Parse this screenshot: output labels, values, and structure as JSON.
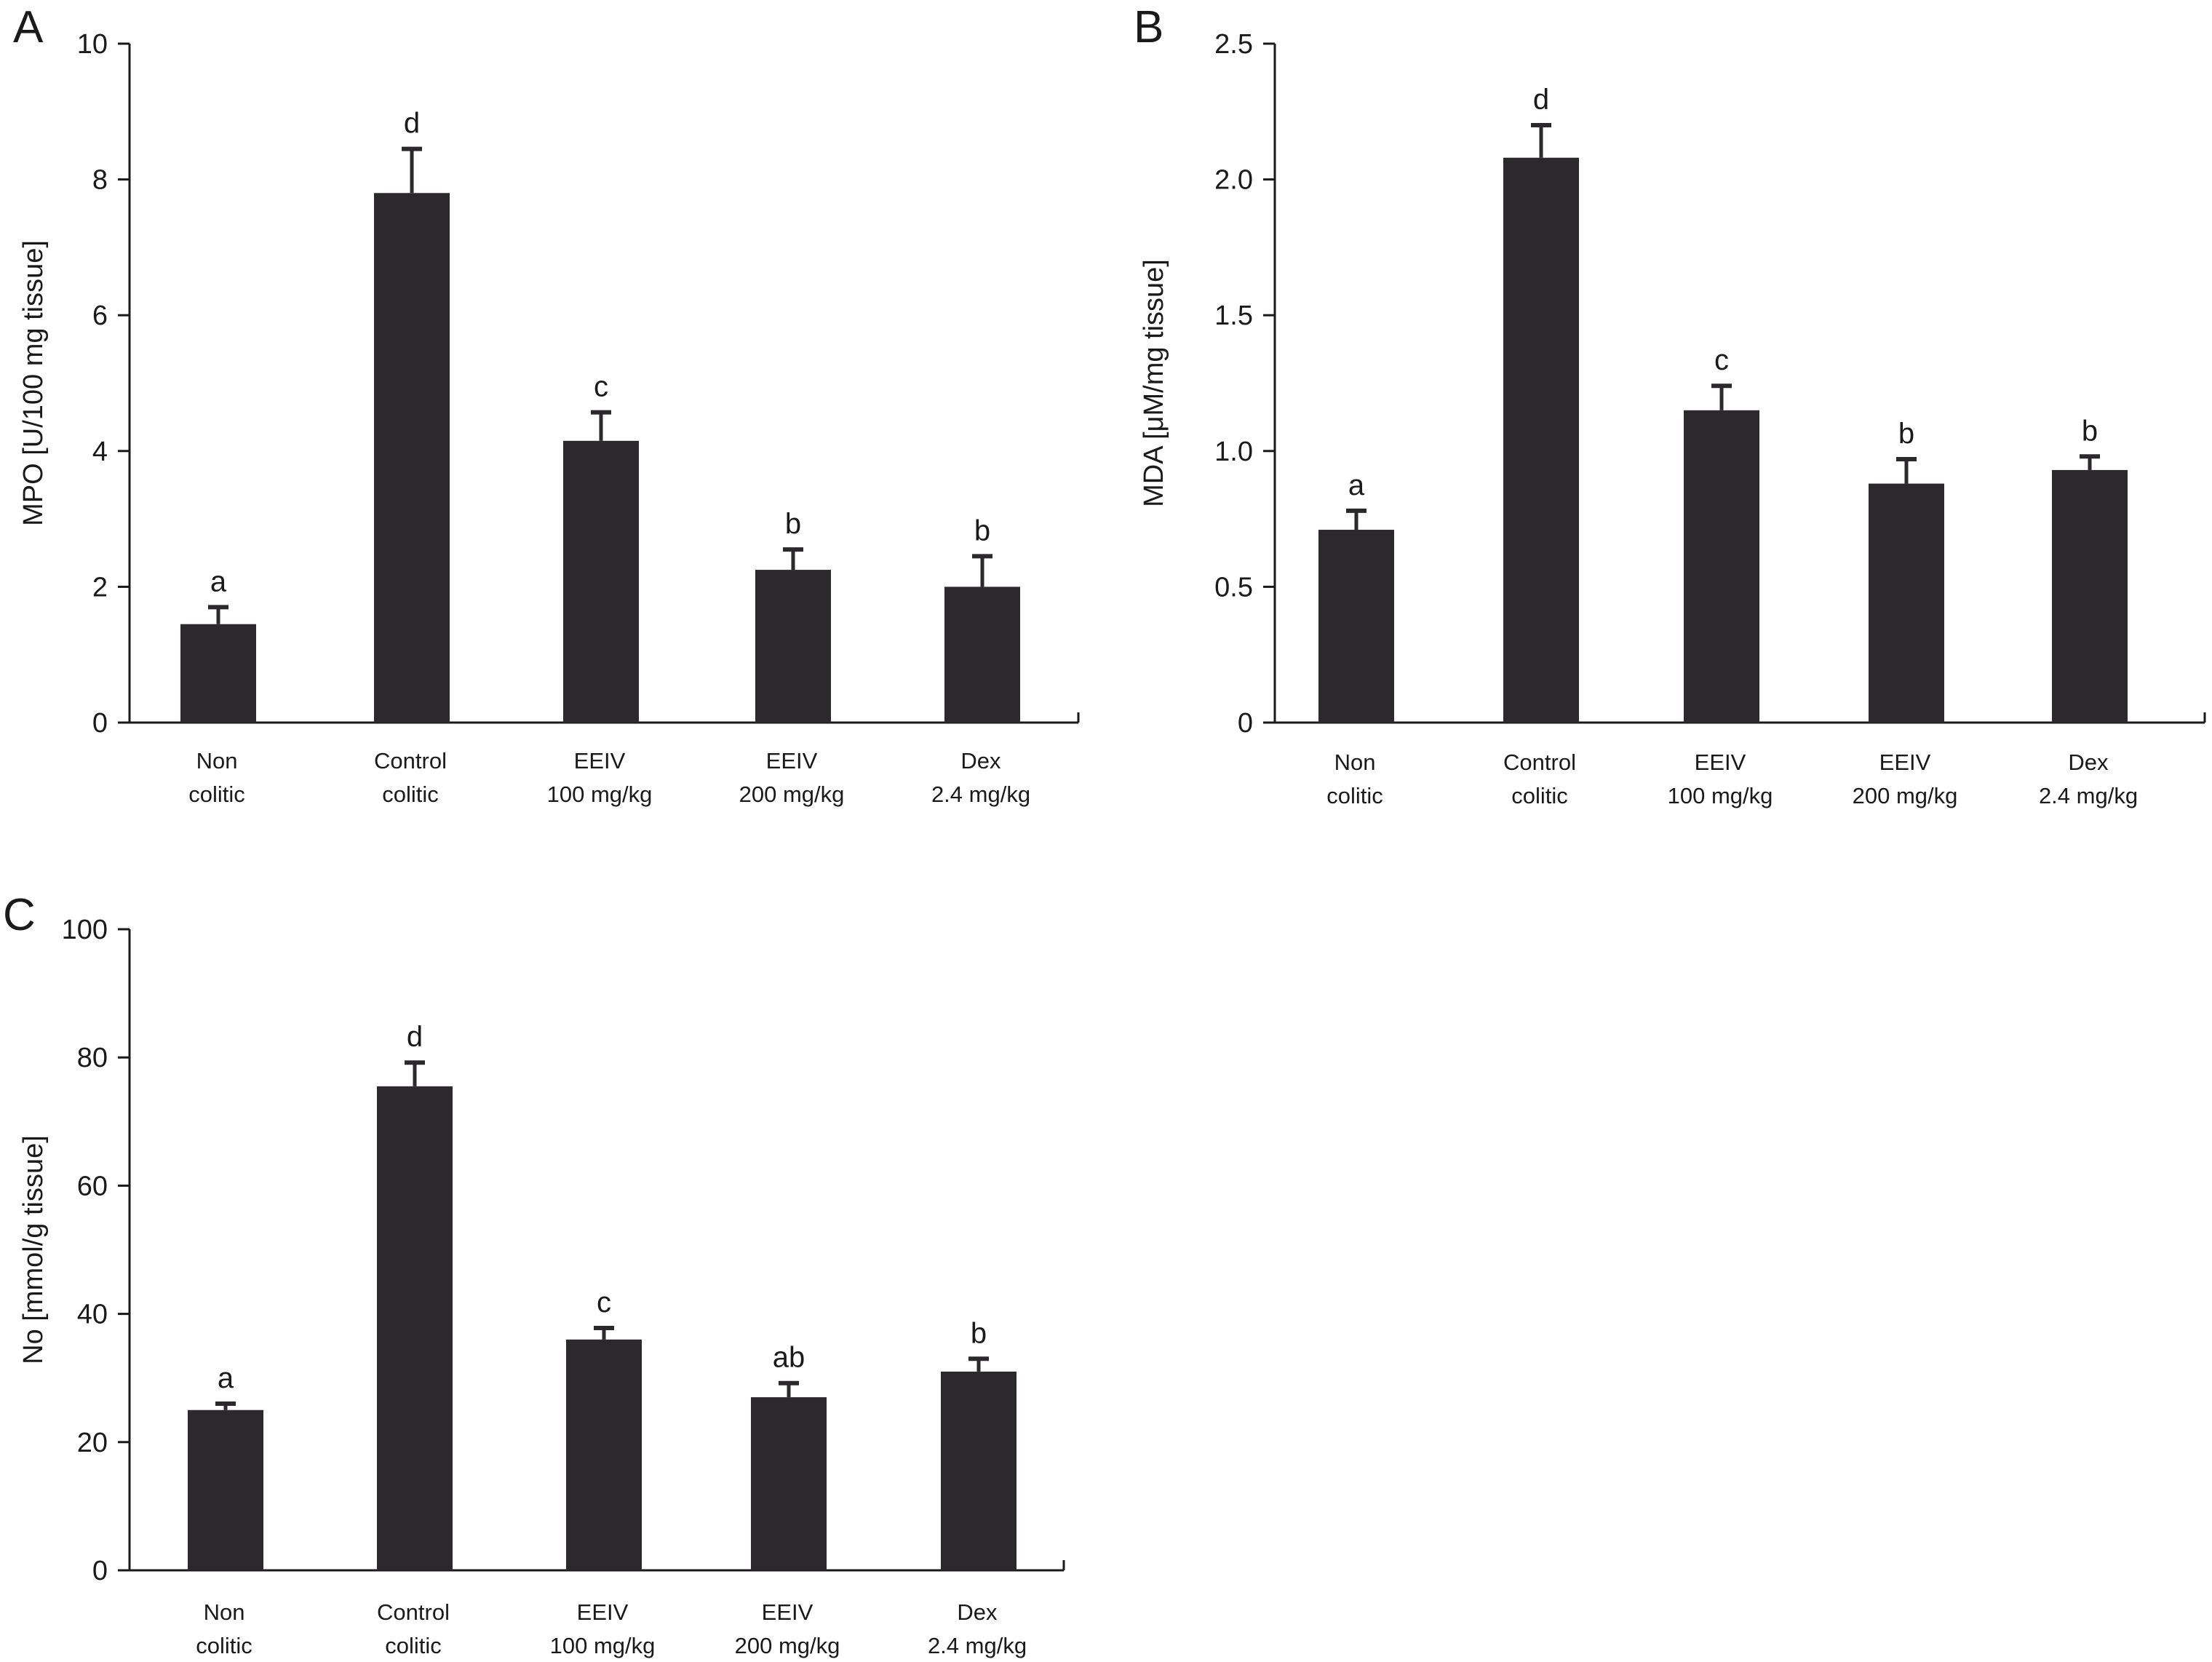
{
  "chart_data": [
    {
      "type": "bar",
      "panel": "A",
      "ylabel": "MPO [U/100 mg tissue]",
      "ylim": [
        0,
        10
      ],
      "yticks": [
        "0",
        "2",
        "4",
        "6",
        "8",
        "10"
      ],
      "categories": [
        [
          "Non",
          "colitic"
        ],
        [
          "Control",
          "colitic"
        ],
        [
          "EEIV",
          "100 mg/kg"
        ],
        [
          "EEIV",
          "200 mg/kg"
        ],
        [
          "Dex",
          "2.4 mg/kg"
        ]
      ],
      "values": [
        1.45,
        7.8,
        4.15,
        2.25,
        2.0
      ],
      "errors": [
        0.25,
        0.65,
        0.42,
        0.3,
        0.45
      ],
      "significance": [
        "a",
        "d",
        "c",
        "b",
        "b"
      ]
    },
    {
      "type": "bar",
      "panel": "B",
      "ylabel": "MDA [μM/mg tissue]",
      "ylim": [
        0,
        2.5
      ],
      "yticks": [
        "0",
        "0.5",
        "1.0",
        "1.5",
        "2.0",
        "2.5"
      ],
      "categories": [
        [
          "Non",
          "colitic"
        ],
        [
          "Control",
          "colitic"
        ],
        [
          "EEIV",
          "100 mg/kg"
        ],
        [
          "EEIV",
          "200 mg/kg"
        ],
        [
          "Dex",
          "2.4 mg/kg"
        ]
      ],
      "values": [
        0.71,
        2.08,
        1.15,
        0.88,
        0.93
      ],
      "errors": [
        0.07,
        0.12,
        0.09,
        0.09,
        0.05
      ],
      "significance": [
        "a",
        "d",
        "c",
        "b",
        "b"
      ]
    },
    {
      "type": "bar",
      "panel": "C",
      "ylabel": "No [mmol/g tissue]",
      "ylim": [
        0,
        100
      ],
      "yticks": [
        "0",
        "20",
        "40",
        "60",
        "80",
        "100"
      ],
      "categories": [
        [
          "Non",
          "colitic"
        ],
        [
          "Control",
          "colitic"
        ],
        [
          "EEIV",
          "100 mg/kg"
        ],
        [
          "EEIV",
          "200 mg/kg"
        ],
        [
          "Dex",
          "2.4 mg/kg"
        ]
      ],
      "values": [
        25,
        75.5,
        36,
        27,
        31
      ],
      "errors": [
        1.0,
        3.7,
        1.8,
        2.2,
        2.0
      ],
      "significance": [
        "a",
        "d",
        "c",
        "ab",
        "b"
      ]
    }
  ]
}
